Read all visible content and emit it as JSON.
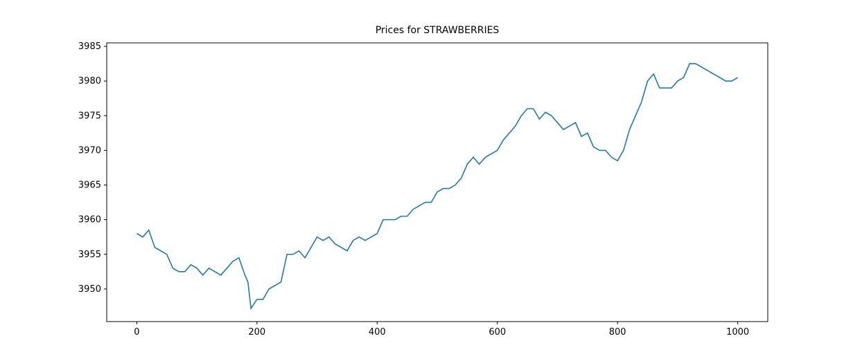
{
  "chart_data": {
    "type": "line",
    "title": "Prices for STRAWBERRIES",
    "x": [
      0,
      10,
      20,
      30,
      40,
      50,
      60,
      70,
      80,
      90,
      100,
      110,
      120,
      130,
      140,
      150,
      160,
      170,
      180,
      185,
      190,
      200,
      210,
      220,
      230,
      240,
      250,
      260,
      270,
      280,
      290,
      300,
      310,
      320,
      330,
      340,
      350,
      360,
      370,
      380,
      390,
      400,
      410,
      420,
      430,
      440,
      450,
      460,
      470,
      480,
      490,
      500,
      510,
      520,
      530,
      540,
      550,
      560,
      570,
      580,
      590,
      600,
      610,
      620,
      630,
      640,
      650,
      660,
      670,
      680,
      690,
      700,
      710,
      720,
      730,
      740,
      750,
      760,
      770,
      780,
      790,
      800,
      810,
      820,
      830,
      840,
      850,
      860,
      870,
      880,
      890,
      900,
      910,
      920,
      930,
      940,
      950,
      960,
      970,
      980,
      990,
      1000
    ],
    "series": [
      {
        "color": "#1f77b4",
        "values": [
          3958,
          3957.5,
          3958.5,
          3956,
          3955.5,
          3955,
          3953,
          3952.5,
          3952.5,
          3953.5,
          3953,
          3952,
          3953,
          3952.5,
          3952,
          3953,
          3954,
          3954.5,
          3952,
          3951,
          3947.2,
          3948.5,
          3948.5,
          3950,
          3950.5,
          3951,
          3955,
          3955,
          3955.5,
          3954.5,
          3956,
          3957.5,
          3957,
          3957.5,
          3956.5,
          3956,
          3955.5,
          3957,
          3957.5,
          3957,
          3957.5,
          3958,
          3960,
          3960,
          3960,
          3960.5,
          3960.5,
          3961.5,
          3962,
          3962.5,
          3962.5,
          3964,
          3964.5,
          3964.5,
          3965,
          3966,
          3968,
          3969,
          3968,
          3969,
          3969.5,
          3970,
          3971.5,
          3972.5,
          3973.5,
          3975,
          3976,
          3976,
          3974.5,
          3975.5,
          3975,
          3974,
          3973,
          3973.5,
          3974,
          3972,
          3972.5,
          3970.5,
          3970,
          3970,
          3969,
          3968.5,
          3970,
          3973,
          3975,
          3977,
          3980,
          3981,
          3979,
          3979,
          3979,
          3980,
          3980.5,
          3982.5,
          3982.5,
          3982,
          3981.5,
          3981,
          3980.5,
          3980,
          3980,
          3980.5
        ]
      }
    ],
    "xlim": [
      -50,
      1050
    ],
    "xticks": [
      0,
      200,
      400,
      600,
      800,
      1000
    ],
    "ylim": [
      3945.3,
      3985.5
    ],
    "yticks": [
      3950,
      3955,
      3960,
      3965,
      3970,
      3975,
      3980,
      3985
    ]
  }
}
